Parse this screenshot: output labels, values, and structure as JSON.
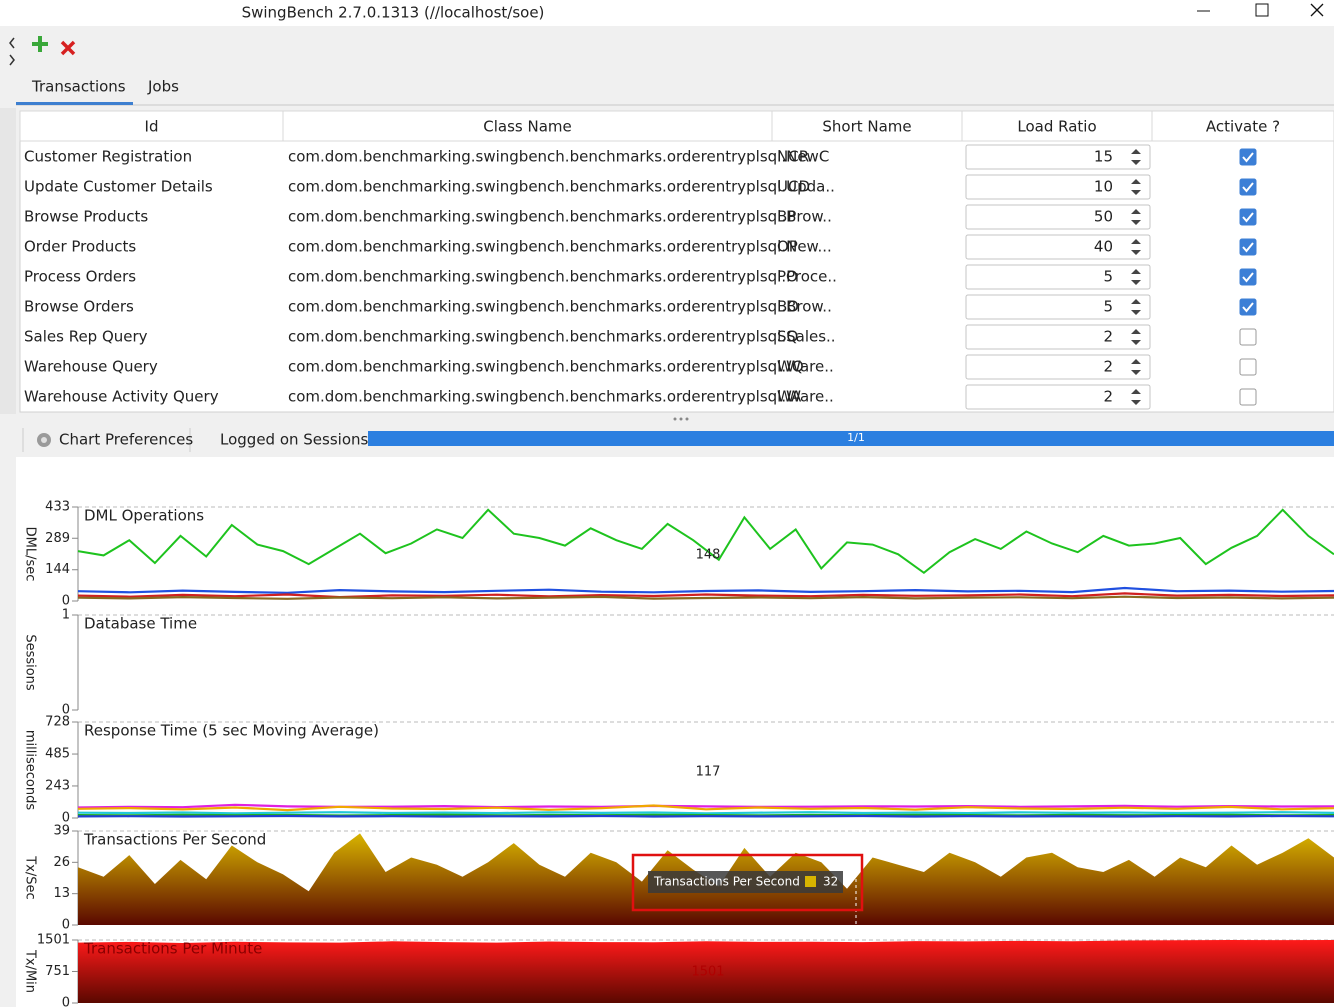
{
  "window": {
    "title": "SwingBench 2.7.0.1313  (//localhost/soe)"
  },
  "tabs": [
    "Transactions",
    "Jobs"
  ],
  "table": {
    "headers": [
      "Id",
      "Class Name",
      "Short Name",
      "Load Ratio",
      "Activate ?"
    ],
    "rows": [
      [
        "Customer Registration",
        "com.dom.benchmarking.swingbench.benchmarks.orderentryplsql.NewC",
        "NCR",
        15,
        true
      ],
      [
        "Update Customer Details",
        "com.dom.benchmarking.swingbench.benchmarks.orderentryplsql.Upda..",
        "UCD",
        10,
        true
      ],
      [
        "Browse Products",
        "com.dom.benchmarking.swingbench.benchmarks.orderentryplsql.Brow..",
        "BP",
        50,
        true
      ],
      [
        "Order Products",
        "com.dom.benchmarking.swingbench.benchmarks.orderentryplsql.New...",
        "OP",
        40,
        true
      ],
      [
        "Process Orders",
        "com.dom.benchmarking.swingbench.benchmarks.orderentryplsql.Proce..",
        "PO",
        5,
        true
      ],
      [
        "Browse Orders",
        "com.dom.benchmarking.swingbench.benchmarks.orderentryplsql.Brow..",
        "BO",
        5,
        true
      ],
      [
        "Sales Rep Query",
        "com.dom.benchmarking.swingbench.benchmarks.orderentryplsql.Sales..",
        "SQ",
        2,
        false
      ],
      [
        "Warehouse Query",
        "com.dom.benchmarking.swingbench.benchmarks.orderentryplsql.Ware..",
        "WQ",
        2,
        false
      ],
      [
        "Warehouse Activity Query",
        "com.dom.benchmarking.swingbench.benchmarks.orderentryplsql.Ware..",
        "WA",
        2,
        false
      ]
    ]
  },
  "monitor": {
    "chart_preferences": "Chart Preferences",
    "sessions_label": "Logged on Sessions",
    "sessions_progress": "1/1"
  },
  "chart_data": [
    {
      "type": "line",
      "title": "DML Operations",
      "ylabel": "DML/sec",
      "ylim": [
        0,
        433
      ],
      "yticks": [
        0,
        144,
        289,
        433
      ],
      "annotation": 148,
      "series": [
        {
          "color": "#1ec31e",
          "values": [
            230,
            210,
            280,
            175,
            300,
            205,
            350,
            260,
            230,
            170,
            240,
            310,
            220,
            265,
            330,
            290,
            420,
            310,
            290,
            255,
            335,
            280,
            240,
            355,
            280,
            190,
            385,
            240,
            330,
            150,
            270,
            260,
            215,
            130,
            225,
            285,
            240,
            320,
            265,
            225,
            300,
            255,
            265,
            290,
            170,
            245,
            300,
            420,
            300,
            215
          ]
        },
        {
          "color": "#2050e0",
          "values": [
            45,
            40,
            48,
            42,
            38,
            50,
            44,
            41,
            47,
            52,
            43,
            40,
            46,
            49,
            42,
            45,
            50,
            44,
            47,
            41,
            60,
            45,
            48,
            43,
            46
          ]
        },
        {
          "color": "#d02020",
          "values": [
            25,
            20,
            28,
            22,
            30,
            18,
            26,
            24,
            29,
            21,
            27,
            23,
            30,
            25,
            22,
            28,
            24,
            26,
            30,
            22,
            35,
            25,
            28,
            23,
            26
          ]
        },
        {
          "color": "#8a6a20",
          "values": [
            15,
            12,
            18,
            14,
            10,
            16,
            13,
            17,
            12,
            15,
            19,
            11,
            14,
            16,
            13,
            18,
            12,
            15,
            17,
            13,
            20,
            14,
            16,
            12,
            15
          ]
        }
      ]
    },
    {
      "type": "line",
      "title": "Database Time",
      "ylabel": "Sessions",
      "ylim": [
        0,
        1
      ],
      "yticks": [
        0,
        1
      ],
      "series": []
    },
    {
      "type": "line",
      "title": "Response Time (5 sec Moving Average)",
      "ylabel": "milliseconds",
      "ylim": [
        0,
        728
      ],
      "yticks": [
        0,
        243,
        485,
        728
      ],
      "annotation": 117,
      "series": [
        {
          "color": "#e020e0",
          "values": [
            80,
            85,
            82,
            100,
            88,
            84,
            86,
            90,
            83,
            87,
            85,
            92,
            88,
            84,
            86,
            89,
            87,
            90,
            85,
            88,
            92,
            86,
            90,
            87,
            89
          ]
        },
        {
          "color": "#f0a800",
          "values": [
            70,
            75,
            65,
            80,
            60,
            85,
            72,
            68,
            78,
            62,
            74,
            95,
            66,
            80,
            70,
            76,
            64,
            82,
            72,
            68,
            78,
            70,
            84,
            66,
            74
          ]
        },
        {
          "color": "#20c8d8",
          "values": [
            40,
            38,
            42,
            36,
            40,
            44,
            38,
            41,
            37,
            43,
            39,
            42,
            36,
            40,
            44,
            38,
            41,
            37,
            43,
            39,
            42,
            38,
            40,
            44,
            39
          ]
        },
        {
          "color": "#20b020",
          "values": [
            22,
            20,
            24,
            21,
            23,
            19,
            22,
            25,
            20,
            23,
            21,
            24,
            22,
            20,
            23,
            21,
            24,
            22,
            20,
            23,
            21,
            22,
            24,
            20,
            22
          ]
        },
        {
          "color": "#2040d0",
          "values": [
            12,
            14,
            11,
            13,
            15,
            12,
            14,
            11,
            13,
            12,
            15,
            11,
            14,
            12,
            13,
            15,
            11,
            14,
            12,
            13,
            11,
            14,
            12,
            15,
            13
          ]
        }
      ]
    },
    {
      "type": "area",
      "title": "Transactions Per Second",
      "ylabel": "Tx/Sec",
      "ylim": [
        0,
        39
      ],
      "yticks": [
        0,
        13,
        26,
        39
      ],
      "tooltip": {
        "label": "Transactions Per Second",
        "value": 32
      },
      "series": [
        {
          "color": "#d8b400",
          "values": [
            24,
            20,
            29,
            17,
            27,
            19,
            33,
            26,
            21,
            14,
            30,
            38,
            22,
            28,
            25,
            20,
            26,
            34,
            25,
            20,
            30,
            26,
            18,
            31,
            23,
            16,
            32,
            20,
            30,
            26,
            15,
            28,
            25,
            22,
            30,
            26,
            20,
            28,
            30,
            24,
            22,
            27,
            20,
            28,
            24,
            33,
            25,
            30,
            36,
            28
          ]
        }
      ]
    },
    {
      "type": "area",
      "title": "Transactions Per Minute",
      "ylabel": "Tx/Min",
      "ylim": [
        0,
        1501
      ],
      "yticks": [
        0,
        751,
        1501
      ],
      "annotation": 1501,
      "series": [
        {
          "color": "#ff1a1a",
          "values": [
            1440,
            1455,
            1430,
            1460,
            1445,
            1438,
            1470,
            1450,
            1440,
            1465,
            1452,
            1448,
            1470,
            1455,
            1460,
            1450,
            1475,
            1468,
            1480,
            1472,
            1490,
            1495,
            1500,
            1498,
            1501
          ]
        }
      ]
    }
  ]
}
